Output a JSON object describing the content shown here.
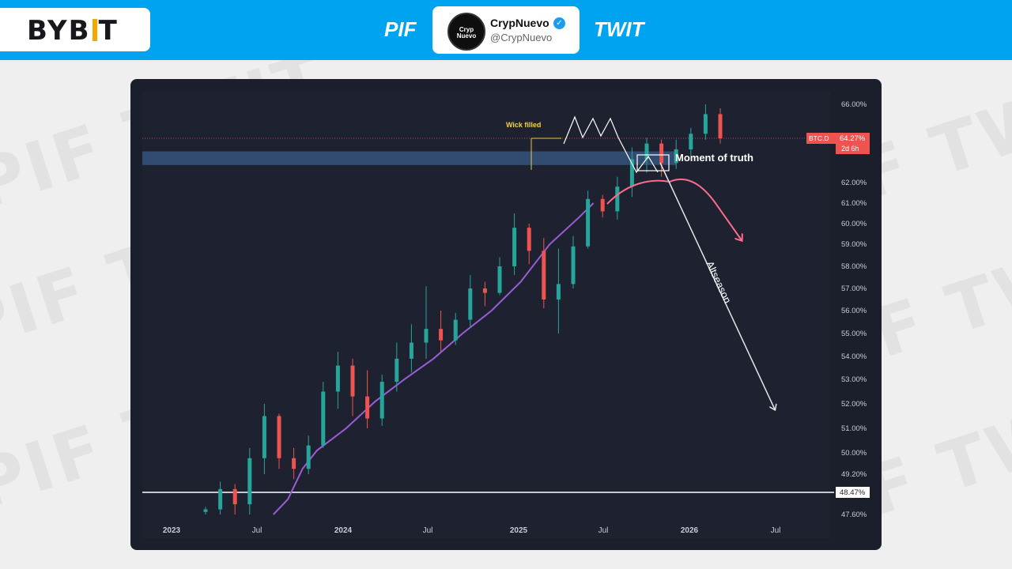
{
  "header": {
    "brand": "BYB",
    "brand_end": "T",
    "left_label": "PIF",
    "right_label": "TWIT",
    "profile_name": "CrypNuevo",
    "profile_handle": "@CrypNuevo",
    "avatar_text": "Cryp Nuevo",
    "watermark": "PIF TWIT"
  },
  "colors": {
    "up": "#26a69a",
    "down": "#ef5350",
    "ma": "#9c5bd6",
    "projection": "#ff6b8e",
    "zone": "#3a5a86",
    "accent": "#00a3f0"
  },
  "chart_data": {
    "type": "candlestick",
    "symbol": "BTC.D",
    "last_price_label": "64.27%",
    "countdown": "2d 6h",
    "support_label": "48.47%",
    "support_level": 48.47,
    "resistance_zone": [
      62.9,
      63.6
    ],
    "x_tick_labels": [
      "2023",
      "Jul",
      "2024",
      "Jul",
      "2025",
      "Jul",
      "2026",
      "Jul"
    ],
    "y_tick_labels": [
      "66.00%",
      "62.00%",
      "61.00%",
      "60.00%",
      "59.00%",
      "58.00%",
      "57.00%",
      "56.00%",
      "55.00%",
      "54.00%",
      "53.00%",
      "52.00%",
      "51.00%",
      "50.00%",
      "49.20%",
      "47.60%"
    ],
    "y_ticks": [
      66,
      62,
      61,
      60,
      59,
      58,
      57,
      56,
      55,
      54,
      53,
      52,
      51,
      50,
      49.2,
      47.6
    ],
    "annotations": {
      "wick": "Wick filled",
      "moment": "Moment of truth",
      "altseason": "Altseason"
    },
    "candles_sampled_every_3_weeks": [
      {
        "date": "2023-04",
        "o": 47.7,
        "h": 47.9,
        "l": 47.5,
        "c": 47.8
      },
      {
        "date": "2023-05",
        "o": 47.8,
        "h": 48.9,
        "l": 47.6,
        "c": 48.6
      },
      {
        "date": "2023-06",
        "o": 48.6,
        "h": 48.8,
        "l": 47.6,
        "c": 48.0
      },
      {
        "date": "2023-06",
        "o": 48.0,
        "h": 50.2,
        "l": 47.6,
        "c": 49.8
      },
      {
        "date": "2023-07",
        "o": 49.8,
        "h": 52.0,
        "l": 49.2,
        "c": 51.5
      },
      {
        "date": "2023-08",
        "o": 51.5,
        "h": 51.6,
        "l": 49.4,
        "c": 49.8
      },
      {
        "date": "2023-09",
        "o": 49.8,
        "h": 50.2,
        "l": 49.0,
        "c": 49.4
      },
      {
        "date": "2023-10",
        "o": 49.4,
        "h": 50.7,
        "l": 49.2,
        "c": 50.3
      },
      {
        "date": "2023-10",
        "o": 50.3,
        "h": 52.9,
        "l": 50.2,
        "c": 52.5
      },
      {
        "date": "2023-11",
        "o": 52.5,
        "h": 54.2,
        "l": 51.8,
        "c": 53.6
      },
      {
        "date": "2023-12",
        "o": 53.6,
        "h": 53.9,
        "l": 51.5,
        "c": 52.3
      },
      {
        "date": "2024-01",
        "o": 52.3,
        "h": 53.4,
        "l": 51.0,
        "c": 51.4
      },
      {
        "date": "2024-01",
        "o": 51.4,
        "h": 53.2,
        "l": 51.1,
        "c": 52.9
      },
      {
        "date": "2024-02",
        "o": 52.9,
        "h": 54.6,
        "l": 52.5,
        "c": 53.9
      },
      {
        "date": "2024-03",
        "o": 53.9,
        "h": 55.4,
        "l": 53.3,
        "c": 54.6
      },
      {
        "date": "2024-04",
        "o": 54.6,
        "h": 57.1,
        "l": 53.9,
        "c": 55.2
      },
      {
        "date": "2024-05",
        "o": 55.2,
        "h": 56.0,
        "l": 54.2,
        "c": 54.7
      },
      {
        "date": "2024-05",
        "o": 54.7,
        "h": 55.9,
        "l": 54.5,
        "c": 55.6
      },
      {
        "date": "2024-06",
        "o": 55.6,
        "h": 57.6,
        "l": 55.3,
        "c": 57.0
      },
      {
        "date": "2024-07",
        "o": 57.0,
        "h": 57.3,
        "l": 56.2,
        "c": 56.8
      },
      {
        "date": "2024-08",
        "o": 56.8,
        "h": 58.4,
        "l": 56.7,
        "c": 58.0
      },
      {
        "date": "2024-09",
        "o": 58.0,
        "h": 60.5,
        "l": 57.6,
        "c": 59.8
      },
      {
        "date": "2024-09",
        "o": 59.8,
        "h": 60.0,
        "l": 58.1,
        "c": 58.7
      },
      {
        "date": "2024-10",
        "o": 58.7,
        "h": 59.3,
        "l": 56.1,
        "c": 56.5
      },
      {
        "date": "2024-11",
        "o": 56.5,
        "h": 58.8,
        "l": 55.0,
        "c": 57.2
      },
      {
        "date": "2024-12",
        "o": 57.2,
        "h": 59.4,
        "l": 57.0,
        "c": 58.9
      },
      {
        "date": "2025-01",
        "o": 58.9,
        "h": 61.6,
        "l": 58.8,
        "c": 61.2
      },
      {
        "date": "2025-01",
        "o": 61.2,
        "h": 61.4,
        "l": 60.3,
        "c": 60.6
      },
      {
        "date": "2025-02",
        "o": 60.6,
        "h": 62.3,
        "l": 60.2,
        "c": 61.8
      },
      {
        "date": "2025-03",
        "o": 61.8,
        "h": 63.8,
        "l": 61.3,
        "c": 63.2
      },
      {
        "date": "2025-04",
        "o": 63.2,
        "h": 64.3,
        "l": 62.5,
        "c": 64.0
      },
      {
        "date": "2025-04",
        "o": 64.0,
        "h": 64.2,
        "l": 62.3,
        "c": 63.0
      },
      {
        "date": "2025-05",
        "o": 63.0,
        "h": 64.2,
        "l": 62.7,
        "c": 63.7
      },
      {
        "date": "2025-06",
        "o": 63.7,
        "h": 64.8,
        "l": 63.4,
        "c": 64.5
      },
      {
        "date": "2025-06",
        "o": 64.5,
        "h": 66.0,
        "l": 64.2,
        "c": 65.5
      },
      {
        "date": "2025-07",
        "o": 65.5,
        "h": 65.8,
        "l": 64.0,
        "c": 64.27
      }
    ],
    "moving_average": [
      {
        "date": "2023-08",
        "v": 47.6
      },
      {
        "date": "2023-09",
        "v": 48.2
      },
      {
        "date": "2023-10",
        "v": 49.4
      },
      {
        "date": "2023-11",
        "v": 50.1
      },
      {
        "date": "2024-01",
        "v": 51.0
      },
      {
        "date": "2024-03",
        "v": 52.1
      },
      {
        "date": "2024-05",
        "v": 53.0
      },
      {
        "date": "2024-07",
        "v": 53.9
      },
      {
        "date": "2024-09",
        "v": 55.0
      },
      {
        "date": "2024-11",
        "v": 56.0
      },
      {
        "date": "2025-01",
        "v": 57.3
      },
      {
        "date": "2025-03",
        "v": 59.0
      },
      {
        "date": "2025-05",
        "v": 60.3
      },
      {
        "date": "2025-06",
        "v": 61.0
      }
    ]
  }
}
